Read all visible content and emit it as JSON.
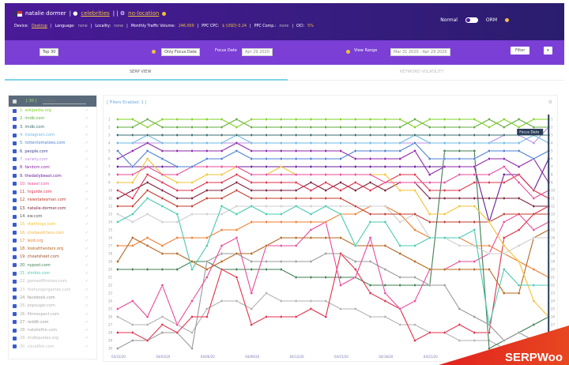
{
  "header": {
    "keyword": "natalie dormer",
    "tag1": "celebrities",
    "tag2": "no-location",
    "device_label": "Device:",
    "device": "Desktop",
    "language_label": "Language:",
    "language": "none",
    "locality_label": "Locality:",
    "locality": "none",
    "volume_label": "Monthly Traffic Volume:",
    "volume": "246,000",
    "cpc_label": "PPC CPC:",
    "cpc": "$ (USD) 0.24",
    "comp_label": "PPC Comp.:",
    "comp": "none",
    "oci_label": "OCI:",
    "oci": "5%",
    "mode_normal": "Normal",
    "mode_orm": "ORM"
  },
  "toolbar": {
    "top": "Top 30",
    "focus_mode": "Only Focus Date",
    "focus_label": "Focus Date",
    "focus_date": "Apr 29 2020",
    "range_label": "View Range",
    "range": "Mar 31 2020 - Apr 29 2020",
    "filter": "Filter",
    "more": "▾"
  },
  "tabs": [
    "SERP VIEW",
    "KEYWORD VOLATILITY"
  ],
  "sidebar": {
    "count": "[ 30 ]",
    "search_placeholder": "Search",
    "items": [
      {
        "label": "1. wikipedia.org",
        "color": "#7ed321"
      },
      {
        "label": "2. imdb.com",
        "color": "#5faa3c"
      },
      {
        "label": "3. imdb.com",
        "color": "#3a6e72"
      },
      {
        "label": "4. instagram.com",
        "color": "#6cb8e6"
      },
      {
        "label": "5. rottentomatoes.com",
        "color": "#4a7fd0"
      },
      {
        "label": "6. people.com",
        "color": "#3d3d8f"
      },
      {
        "label": "7. variety.com",
        "color": "#b58ee0"
      },
      {
        "label": "8. fandom.com",
        "color": "#8e24aa"
      },
      {
        "label": "9. thedailybeast.com",
        "color": "#6a1b9a"
      },
      {
        "label": "10. teaser.com",
        "color": "#e84a9a"
      },
      {
        "label": "11. tvguide.com",
        "color": "#e0304a"
      },
      {
        "label": "12. newstatesman.com",
        "color": "#c0392b"
      },
      {
        "label": "13. natalie-dormer.com",
        "color": "#7b1f3a"
      },
      {
        "label": "14. ew.com",
        "color": "#555555"
      },
      {
        "label": "15. thethings.com",
        "color": "#f2c230"
      },
      {
        "label": "16. chelseafcfans.com",
        "color": "#f5b040"
      },
      {
        "label": "17. lezd.org",
        "color": "#ef7c30"
      },
      {
        "label": "18. lookatthestars.org",
        "color": "#b5651d"
      },
      {
        "label": "19. cheatsheet.com",
        "color": "#a0522d"
      },
      {
        "label": "20. nypost.com",
        "color": "#3e7d52"
      },
      {
        "label": "21. zimbio.com",
        "color": "#48c9b0"
      },
      {
        "label": "22. gameofthrones.com",
        "color": "#bbbbbb"
      },
      {
        "label": "23. thehungergames.com",
        "color": "#c0c0c0"
      },
      {
        "label": "24. facebook.com",
        "color": "#999999"
      },
      {
        "label": "25. popsugar.com",
        "color": "#b0b0b0"
      },
      {
        "label": "26. filmrespect.com",
        "color": "#aaaaaa"
      },
      {
        "label": "27. reddit.com",
        "color": "#999999"
      },
      {
        "label": "28. nataliefire.com",
        "color": "#aaaaaa"
      },
      {
        "label": "29. imdbquotes.org",
        "color": "#b8b8b8"
      },
      {
        "label": "30. cloudfire.com",
        "color": "#c4c4c4"
      }
    ]
  },
  "chart_data": {
    "type": "line",
    "filters_label": "[ Filters Enabled: 1 ]",
    "focus_label": "Focus Date",
    "ylim": [
      1,
      30
    ],
    "y_inverted": true,
    "grid": false,
    "x": [
      "03/31/20",
      "04/01/20",
      "04/02/20",
      "04/03/20",
      "04/04/20",
      "04/05/20",
      "04/06/20",
      "04/07/20",
      "04/08/20",
      "04/09/20",
      "04/10/20",
      "04/11/20",
      "04/12/20",
      "04/13/20",
      "04/14/20",
      "04/15/20",
      "04/16/20",
      "04/17/20",
      "04/18/20",
      "04/19/20",
      "04/20/20",
      "04/21/20",
      "04/22/20",
      "04/23/20",
      "04/24/20",
      "04/25/20",
      "04/26/20",
      "04/27/20",
      "04/28/20",
      "04/29/20"
    ],
    "xticks": [
      "03/31/20",
      "04/03/20",
      "04/06/20",
      "04/09/20",
      "04/12/20",
      "04/15/20",
      "04/18/20",
      "04/21/20"
    ],
    "series": [
      {
        "color": "#7ed321",
        "values": [
          1,
          1,
          2,
          1,
          1,
          1,
          1,
          1,
          2,
          1,
          1,
          1,
          1,
          1,
          1,
          1,
          1,
          1,
          1,
          1,
          2,
          1,
          1,
          1,
          1,
          2,
          1,
          2,
          1,
          1
        ]
      },
      {
        "color": "#5faa3c",
        "values": [
          2,
          2,
          1,
          2,
          2,
          2,
          2,
          2,
          1,
          2,
          2,
          2,
          2,
          2,
          2,
          2,
          2,
          2,
          2,
          2,
          1,
          2,
          2,
          2,
          2,
          1,
          2,
          1,
          2,
          2
        ]
      },
      {
        "color": "#3a6e72",
        "values": [
          3,
          3,
          3,
          3,
          3,
          3,
          3,
          3,
          3,
          3,
          3,
          3,
          3,
          3,
          3,
          3,
          3,
          3,
          3,
          3,
          3,
          3,
          3,
          3,
          3,
          3,
          3,
          3,
          3,
          3
        ]
      },
      {
        "color": "#6cb8e6",
        "values": [
          4,
          4,
          3,
          4,
          4,
          4,
          4,
          4,
          3,
          4,
          4,
          4,
          4,
          4,
          4,
          4,
          4,
          4,
          4,
          4,
          3,
          4,
          4,
          4,
          4,
          4,
          4,
          4,
          3,
          4
        ]
      },
      {
        "color": "#4a7fd0",
        "values": [
          5,
          7,
          5,
          6,
          7,
          7,
          6,
          6,
          5,
          6,
          6,
          6,
          6,
          6,
          6,
          6,
          5,
          5,
          5,
          5,
          4,
          6,
          6,
          6,
          6,
          5,
          5,
          5,
          6,
          5
        ]
      },
      {
        "color": "#8e24aa",
        "values": [
          6,
          5,
          4,
          5,
          5,
          5,
          5,
          5,
          4,
          5,
          5,
          5,
          5,
          5,
          5,
          5,
          6,
          6,
          6,
          6,
          5,
          8,
          7,
          7,
          7,
          6,
          6,
          7,
          6,
          9
        ]
      },
      {
        "color": "#b58ee0",
        "values": [
          4,
          4,
          4,
          4,
          4,
          4,
          4,
          4,
          4,
          4,
          4,
          4,
          4,
          4,
          4,
          4,
          4,
          4,
          4,
          4,
          4,
          4,
          4,
          4,
          4,
          4,
          3,
          3,
          4,
          2
        ]
      },
      {
        "color": "#e84a9a",
        "values": [
          8,
          8,
          7,
          8,
          8,
          7,
          7,
          7,
          7,
          8,
          8,
          8,
          8,
          8,
          8,
          8,
          8,
          8,
          9,
          9,
          9,
          9,
          9,
          8,
          8,
          8,
          7,
          9,
          11,
          10
        ]
      },
      {
        "color": "#f2c230",
        "values": [
          9,
          9,
          6,
          8,
          9,
          9,
          8,
          8,
          7,
          8,
          8,
          7,
          8,
          8,
          8,
          8,
          8,
          8,
          8,
          10,
          10,
          13,
          13,
          12,
          12,
          14,
          17,
          19,
          24,
          26
        ]
      },
      {
        "color": "#e0304a",
        "values": [
          10,
          11,
          8,
          9,
          10,
          10,
          9,
          9,
          8,
          9,
          9,
          9,
          9,
          10,
          9,
          10,
          9,
          10,
          9,
          8,
          8,
          10,
          10,
          10,
          9,
          9,
          9,
          8,
          10,
          11
        ]
      },
      {
        "color": "#7b1f3a",
        "values": [
          11,
          10,
          9,
          10,
          11,
          11,
          10,
          10,
          9,
          10,
          10,
          10,
          10,
          9,
          10,
          9,
          10,
          9,
          10,
          9,
          9,
          11,
          11,
          11,
          11,
          11,
          11,
          11,
          12,
          12
        ]
      },
      {
        "color": "#c0392b",
        "values": [
          12,
          12,
          10,
          11,
          12,
          12,
          11,
          11,
          10,
          11,
          11,
          11,
          11,
          11,
          11,
          11,
          12,
          13,
          13,
          13,
          13,
          14,
          14,
          14,
          14,
          14,
          13,
          13,
          13,
          13
        ]
      },
      {
        "color": "#48c9b0",
        "values": [
          14,
          13,
          11,
          12,
          13,
          20,
          17,
          12,
          13,
          12,
          13,
          13,
          12,
          13,
          12,
          13,
          17,
          14,
          14,
          17,
          17,
          16,
          16,
          16,
          15,
          27,
          20,
          22,
          22,
          22
        ]
      },
      {
        "color": "#cccccc",
        "values": [
          13,
          14,
          13,
          14,
          14,
          13,
          13,
          13,
          12,
          12,
          12,
          12,
          12,
          12,
          12,
          12,
          12,
          12,
          12,
          14,
          13,
          16,
          16,
          17,
          17,
          18,
          18,
          17,
          16,
          16
        ]
      },
      {
        "color": "#b5651d",
        "values": [
          19,
          16,
          17,
          18,
          18,
          19,
          20,
          19,
          18,
          18,
          17,
          16,
          16,
          16,
          16,
          16,
          17,
          17,
          17,
          18,
          19,
          20,
          20,
          20,
          20,
          20,
          23,
          23,
          16,
          15
        ]
      },
      {
        "color": "#ef7c30",
        "values": [
          17,
          17,
          16,
          17,
          16,
          16,
          16,
          15,
          15,
          14,
          14,
          14,
          14,
          14,
          14,
          13,
          13,
          12,
          12,
          13,
          15,
          16,
          16,
          16,
          17,
          17,
          18,
          19,
          20,
          21
        ]
      },
      {
        "color": "#e84a9a",
        "values": [
          25,
          24,
          26,
          22,
          27,
          24,
          21,
          17,
          16,
          23,
          17,
          17,
          17,
          15,
          14,
          22,
          21,
          16,
          23,
          25,
          24,
          20,
          20,
          19,
          19,
          18,
          14,
          13,
          15,
          14
        ]
      },
      {
        "color": "#e0304a",
        "values": [
          28,
          28,
          29,
          27,
          28,
          26,
          26,
          20,
          21,
          27,
          26,
          26,
          26,
          25,
          26,
          18,
          20,
          23,
          24,
          25,
          29,
          28,
          28,
          27,
          28,
          28,
          16,
          15,
          13,
          12
        ]
      },
      {
        "color": "#999999",
        "values": [
          30,
          29,
          29,
          28,
          28,
          30,
          19,
          18,
          18,
          19,
          19,
          19,
          19,
          19,
          18,
          18,
          19,
          19,
          20,
          21,
          21,
          22,
          22,
          25,
          26,
          27,
          29,
          28,
          29,
          30
        ]
      },
      {
        "color": "#3e7d52",
        "values": [
          20,
          20,
          20,
          20,
          20,
          19,
          19,
          20,
          20,
          20,
          20,
          20,
          21,
          21,
          21,
          21,
          21,
          22,
          22,
          22,
          22,
          22,
          5,
          5,
          5,
          30,
          29,
          28,
          27,
          26
        ]
      },
      {
        "color": "#b0b0b0",
        "values": [
          26,
          27,
          27,
          26,
          27,
          28,
          25,
          24,
          24,
          25,
          23,
          24,
          24,
          24,
          24,
          25,
          25,
          26,
          26,
          27,
          27,
          28,
          28,
          29,
          29,
          29,
          30,
          30,
          30,
          29
        ]
      },
      {
        "color": "#6a1b9a",
        "values": [
          7,
          7,
          7,
          7,
          7,
          7,
          7,
          7,
          7,
          7,
          7,
          7,
          7,
          7,
          7,
          7,
          7,
          7,
          7,
          7,
          7,
          7,
          7,
          7,
          7,
          14,
          8,
          8,
          10,
          6
        ]
      }
    ]
  },
  "logo": "SERPWoo"
}
